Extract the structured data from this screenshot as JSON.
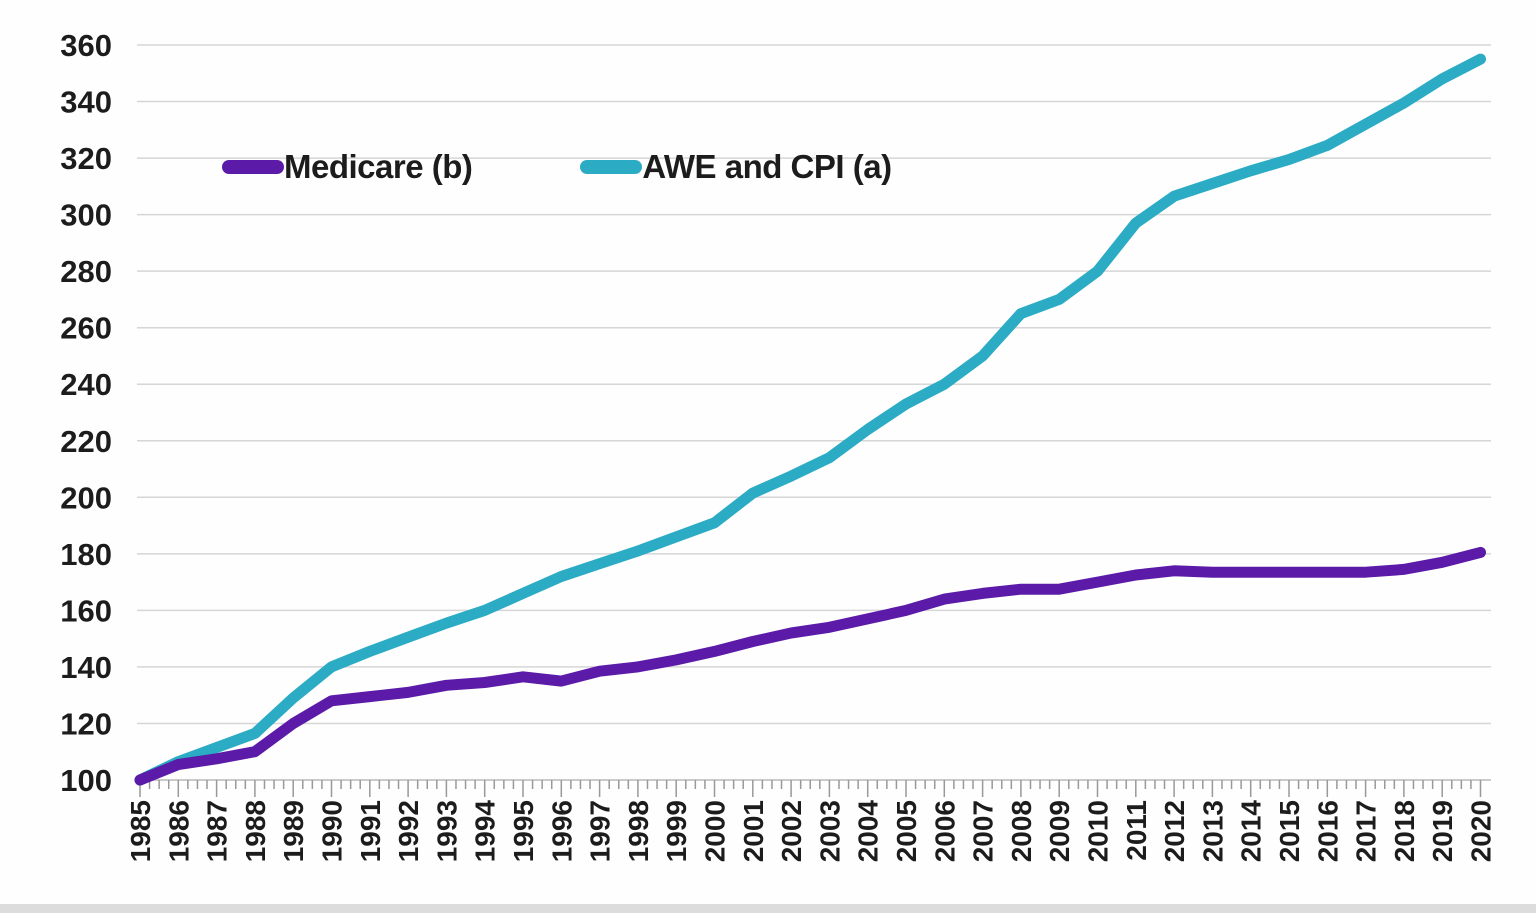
{
  "chart_data": {
    "type": "line",
    "title": "",
    "xlabel": "",
    "ylabel": "",
    "x": [
      1985,
      1986,
      1987,
      1988,
      1989,
      1990,
      1991,
      1992,
      1993,
      1994,
      1995,
      1996,
      1997,
      1998,
      1999,
      2000,
      2001,
      2002,
      2003,
      2004,
      2005,
      2006,
      2007,
      2008,
      2009,
      2010,
      2011,
      2012,
      2013,
      2014,
      2015,
      2016,
      2017,
      2018,
      2019,
      2020
    ],
    "series": [
      {
        "name": "Medicare (b)",
        "color": "#5b1ba8",
        "values": [
          100,
          105.5,
          107.5,
          110,
          120,
          128,
          129.5,
          131,
          133.5,
          134.5,
          136.5,
          135,
          138.5,
          140,
          142.5,
          145.5,
          149,
          152,
          154,
          157,
          160,
          164,
          166,
          167.5,
          167.5,
          170,
          172.5,
          174,
          173.5,
          173.5,
          173.5,
          173.5,
          173.5,
          174.5,
          177,
          180.5
        ]
      },
      {
        "name": "AWE and CPI (a)",
        "color": "#2bacc4",
        "values": [
          100,
          106.5,
          111.5,
          116.5,
          129,
          140,
          145.5,
          150.5,
          155.5,
          160,
          166,
          172,
          176.5,
          181,
          186,
          191,
          201.5,
          207.5,
          214,
          224,
          233,
          240,
          250,
          265,
          270,
          280,
          297,
          306.5,
          311,
          315.5,
          319.5,
          324.5,
          332,
          339.5,
          348,
          355
        ]
      }
    ],
    "ylim": [
      100,
      360
    ],
    "ytick_step": 20,
    "ytick_labels": [
      "100",
      "120",
      "140",
      "160",
      "180",
      "200",
      "220",
      "240",
      "260",
      "280",
      "300",
      "320",
      "340",
      "360"
    ],
    "xtick_labels": [
      "1985",
      "1986",
      "1987",
      "1988",
      "1989",
      "1990",
      "1991",
      "1992",
      "1993",
      "1994",
      "1995",
      "1996",
      "1997",
      "1998",
      "1999",
      "2000",
      "2001",
      "2002",
      "2003",
      "2004",
      "2005",
      "2006",
      "2007",
      "2008",
      "2009",
      "2010",
      "2011",
      "2012",
      "2013",
      "2014",
      "2015",
      "2016",
      "2017",
      "2018",
      "2019",
      "2020"
    ],
    "minor_xticks_per_year": 4,
    "grid": "horizontal",
    "legend_position": "top-left-inside"
  },
  "legend": {
    "items": [
      {
        "label": "Medicare (b)",
        "color": "#5b1ba8"
      },
      {
        "label": "AWE and CPI (a)",
        "color": "#2bacc4"
      }
    ]
  },
  "colors": {
    "gridline": "#d6d6d6",
    "axis_line": "#bfbfbf",
    "tick": "#999999",
    "tick_label": "#1c1c1c",
    "background": "#fefefe",
    "bottom_strip": "#dcdcdc"
  }
}
